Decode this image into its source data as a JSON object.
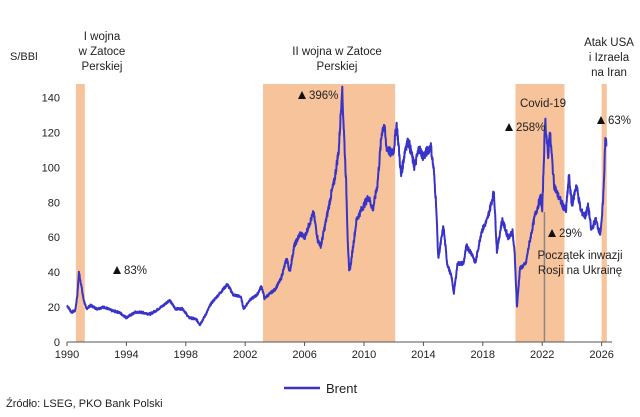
{
  "chart_data": {
    "type": "line",
    "ylabel": "S/BBl",
    "xlim": [
      1990,
      2026.7
    ],
    "ylim": [
      0,
      150
    ],
    "y_ticks": [
      0,
      20,
      40,
      60,
      80,
      100,
      120,
      140
    ],
    "x_ticks": [
      1990,
      1994,
      1998,
      2002,
      2006,
      2010,
      2014,
      2018,
      2022,
      2026
    ],
    "series": [
      {
        "name": "Brent",
        "color": "#3a33c8",
        "points": [
          [
            1990.0,
            21
          ],
          [
            1990.3,
            17
          ],
          [
            1990.55,
            18
          ],
          [
            1990.7,
            27
          ],
          [
            1990.8,
            40
          ],
          [
            1990.95,
            33
          ],
          [
            1991.1,
            25
          ],
          [
            1991.3,
            19
          ],
          [
            1991.6,
            21
          ],
          [
            1992.0,
            19
          ],
          [
            1992.5,
            20
          ],
          [
            1993.0,
            18
          ],
          [
            1993.5,
            17
          ],
          [
            1994.0,
            14
          ],
          [
            1994.6,
            17
          ],
          [
            1995.0,
            17
          ],
          [
            1995.6,
            16
          ],
          [
            1996.0,
            18
          ],
          [
            1996.5,
            21
          ],
          [
            1996.9,
            24
          ],
          [
            1997.3,
            19
          ],
          [
            1997.8,
            19
          ],
          [
            1998.2,
            14
          ],
          [
            1998.7,
            13
          ],
          [
            1998.95,
            10
          ],
          [
            1999.3,
            15
          ],
          [
            1999.7,
            22
          ],
          [
            2000.0,
            25
          ],
          [
            2000.5,
            30
          ],
          [
            2000.8,
            33
          ],
          [
            2001.2,
            27
          ],
          [
            2001.7,
            26
          ],
          [
            2001.9,
            19
          ],
          [
            2002.3,
            24
          ],
          [
            2002.8,
            27
          ],
          [
            2003.1,
            32
          ],
          [
            2003.3,
            25
          ],
          [
            2003.7,
            28
          ],
          [
            2004.0,
            30
          ],
          [
            2004.4,
            36
          ],
          [
            2004.8,
            48
          ],
          [
            2005.0,
            40
          ],
          [
            2005.3,
            55
          ],
          [
            2005.7,
            62
          ],
          [
            2006.0,
            60
          ],
          [
            2006.6,
            74
          ],
          [
            2006.9,
            58
          ],
          [
            2007.1,
            55
          ],
          [
            2007.5,
            72
          ],
          [
            2007.8,
            85
          ],
          [
            2008.0,
            92
          ],
          [
            2008.3,
            110
          ],
          [
            2008.45,
            133
          ],
          [
            2008.52,
            146
          ],
          [
            2008.65,
            120
          ],
          [
            2008.8,
            90
          ],
          [
            2008.9,
            60
          ],
          [
            2009.0,
            40
          ],
          [
            2009.1,
            44
          ],
          [
            2009.5,
            70
          ],
          [
            2009.9,
            77
          ],
          [
            2010.3,
            83
          ],
          [
            2010.6,
            76
          ],
          [
            2010.9,
            90
          ],
          [
            2011.2,
            120
          ],
          [
            2011.35,
            125
          ],
          [
            2011.5,
            112
          ],
          [
            2011.8,
            108
          ],
          [
            2012.0,
            110
          ],
          [
            2012.2,
            125
          ],
          [
            2012.5,
            95
          ],
          [
            2012.8,
            112
          ],
          [
            2013.0,
            115
          ],
          [
            2013.4,
            100
          ],
          [
            2013.7,
            111
          ],
          [
            2014.0,
            106
          ],
          [
            2014.3,
            110
          ],
          [
            2014.5,
            112
          ],
          [
            2014.7,
            98
          ],
          [
            2014.85,
            80
          ],
          [
            2015.0,
            48
          ],
          [
            2015.35,
            66
          ],
          [
            2015.6,
            45
          ],
          [
            2015.9,
            37
          ],
          [
            2016.05,
            28
          ],
          [
            2016.3,
            45
          ],
          [
            2016.7,
            45
          ],
          [
            2016.9,
            55
          ],
          [
            2017.3,
            50
          ],
          [
            2017.5,
            45
          ],
          [
            2017.9,
            63
          ],
          [
            2018.3,
            70
          ],
          [
            2018.75,
            86
          ],
          [
            2018.95,
            52
          ],
          [
            2019.3,
            70
          ],
          [
            2019.7,
            60
          ],
          [
            2020.0,
            63
          ],
          [
            2020.15,
            50
          ],
          [
            2020.3,
            20
          ],
          [
            2020.5,
            42
          ],
          [
            2020.9,
            45
          ],
          [
            2021.1,
            55
          ],
          [
            2021.5,
            72
          ],
          [
            2021.9,
            83
          ],
          [
            2022.0,
            75
          ],
          [
            2022.2,
            128
          ],
          [
            2022.4,
            105
          ],
          [
            2022.5,
            122
          ],
          [
            2022.8,
            90
          ],
          [
            2023.0,
            85
          ],
          [
            2023.4,
            78
          ],
          [
            2023.6,
            75
          ],
          [
            2023.8,
            95
          ],
          [
            2024.0,
            78
          ],
          [
            2024.3,
            90
          ],
          [
            2024.6,
            75
          ],
          [
            2024.9,
            72
          ],
          [
            2025.1,
            78
          ],
          [
            2025.3,
            64
          ],
          [
            2025.6,
            70
          ],
          [
            2025.9,
            62
          ],
          [
            2026.0,
            68
          ],
          [
            2026.15,
            90
          ],
          [
            2026.25,
            118
          ],
          [
            2026.32,
            112
          ]
        ]
      }
    ],
    "shaded_periods": [
      {
        "start": 1990.6,
        "end": 1991.2,
        "color": "#f7c39a"
      },
      {
        "start": 2003.2,
        "end": 2012.1,
        "color": "#f7c39a"
      },
      {
        "start": 2020.2,
        "end": 2023.5,
        "color": "#f7c39a"
      },
      {
        "start": 2026.0,
        "end": 2026.35,
        "color": "#f7c39a"
      }
    ],
    "marker_line": {
      "x": 2022.15,
      "color": "#888888"
    },
    "annotations": [
      {
        "id": "gulf1",
        "text": [
          "I wojna",
          "w Zatoce",
          "Perskiej"
        ]
      },
      {
        "id": "gulf2",
        "text": [
          "II wojna w Zatoce",
          "Perskiej"
        ]
      },
      {
        "id": "covid",
        "text": [
          "Covid-19"
        ]
      },
      {
        "id": "attack",
        "text": [
          "Atak USA",
          "i Izraela",
          "na Iran"
        ]
      },
      {
        "id": "ukraine",
        "text": [
          "Początek inwazji",
          "Rosji na Ukrainę"
        ]
      }
    ],
    "pct_labels": [
      {
        "id": "pct-83",
        "text": "83%"
      },
      {
        "id": "pct-396",
        "text": "396%"
      },
      {
        "id": "pct-258",
        "text": "258%"
      },
      {
        "id": "pct-29",
        "text": "29%"
      },
      {
        "id": "pct-63",
        "text": "63%"
      }
    ],
    "legend": {
      "label": "Brent",
      "position": "bottom-center"
    }
  },
  "source": "Źródło: LSEG, PKO Bank Polski"
}
